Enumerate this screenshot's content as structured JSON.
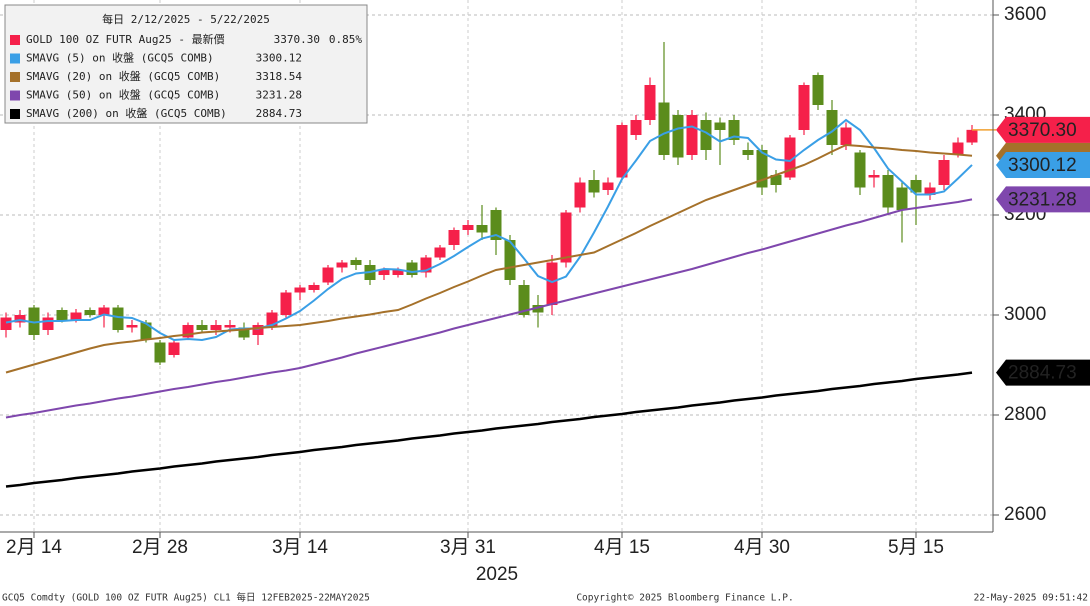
{
  "chart_data": {
    "type": "candlestick",
    "title": "每日 2/12/2025 - 5/22/2025",
    "categories": [
      null,
      null,
      "2月 14",
      null,
      null,
      null,
      null,
      null,
      null,
      null,
      null,
      "2月 28",
      null,
      null,
      null,
      null,
      null,
      null,
      null,
      null,
      null,
      "3月 14",
      null,
      null,
      null,
      null,
      null,
      null,
      null,
      null,
      null,
      null,
      null,
      "3月 31",
      null,
      null,
      null,
      null,
      null,
      null,
      null,
      null,
      null,
      null,
      "4月 15",
      null,
      null,
      null,
      null,
      null,
      null,
      null,
      null,
      null,
      "4月 30",
      null,
      null,
      null,
      null,
      null,
      null,
      null,
      null,
      null,
      null,
      "5月 15",
      null,
      null,
      null,
      null
    ],
    "ohlc": {
      "name": "GOLD 100 OZ FUTR Aug25 - 最新價",
      "up_color": "#f5204a",
      "down_color": "#5b8c1c",
      "open": [
        2970,
        2985,
        3015,
        2970,
        3010,
        2990,
        3010,
        3000,
        3015,
        2975,
        2985,
        2945,
        2920,
        2955,
        2980,
        2970,
        2975,
        2975,
        2960,
        2975,
        3000,
        3045,
        3050,
        3065,
        3095,
        3110,
        3100,
        3080,
        3080,
        3105,
        3085,
        3115,
        3140,
        3170,
        3180,
        3210,
        3150,
        3060,
        3020,
        3020,
        3105,
        3215,
        3270,
        3250,
        3275,
        3360,
        3390,
        3425,
        3400,
        3320,
        3390,
        3385,
        3390,
        3330,
        3330,
        3280,
        3275,
        3370,
        3480,
        3410,
        3340,
        3325,
        3275,
        3280,
        3255,
        3270,
        3240,
        3260,
        3320,
        3345
      ],
      "high": [
        3005,
        3010,
        3020,
        3005,
        3015,
        3012,
        3015,
        3020,
        3020,
        2990,
        2990,
        2950,
        2950,
        2985,
        2990,
        2990,
        2990,
        2985,
        2985,
        3010,
        3050,
        3060,
        3065,
        3100,
        3110,
        3115,
        3110,
        3095,
        3095,
        3110,
        3120,
        3140,
        3175,
        3190,
        3220,
        3215,
        3160,
        3070,
        3040,
        3120,
        3210,
        3275,
        3290,
        3275,
        3385,
        3400,
        3475,
        3546,
        3410,
        3410,
        3405,
        3395,
        3400,
        3345,
        3340,
        3290,
        3360,
        3465,
        3485,
        3430,
        3385,
        3330,
        3290,
        3290,
        3265,
        3280,
        3265,
        3320,
        3355,
        3380
      ],
      "low": [
        2955,
        2975,
        2950,
        2960,
        2985,
        2985,
        2995,
        2975,
        2965,
        2965,
        2945,
        2900,
        2915,
        2950,
        2965,
        2960,
        2965,
        2950,
        2940,
        2970,
        2995,
        3030,
        3045,
        3060,
        3085,
        3090,
        3060,
        3070,
        3075,
        3075,
        3075,
        3110,
        3130,
        3160,
        3150,
        3120,
        3060,
        2995,
        2975,
        3000,
        3095,
        3205,
        3235,
        3240,
        3270,
        3350,
        3380,
        3310,
        3300,
        3310,
        3310,
        3300,
        3340,
        3310,
        3240,
        3245,
        3270,
        3360,
        3410,
        3320,
        3330,
        3240,
        3255,
        3200,
        3145,
        3180,
        3230,
        3250,
        3315,
        3340
      ],
      "close": [
        2995,
        3000,
        2960,
        2995,
        2990,
        3005,
        3000,
        3015,
        2970,
        2980,
        2950,
        2905,
        2945,
        2980,
        2970,
        2980,
        2980,
        2955,
        2980,
        3005,
        3045,
        3055,
        3060,
        3095,
        3105,
        3100,
        3070,
        3090,
        3090,
        3080,
        3115,
        3135,
        3170,
        3180,
        3165,
        3150,
        3070,
        3000,
        3005,
        3105,
        3205,
        3265,
        3245,
        3265,
        3380,
        3390,
        3460,
        3320,
        3315,
        3400,
        3330,
        3370,
        3350,
        3320,
        3255,
        3260,
        3355,
        3460,
        3420,
        3340,
        3375,
        3255,
        3280,
        3215,
        3210,
        3245,
        3255,
        3310,
        3345,
        3370.3
      ],
      "last_label": "3370.30",
      "change_label": "0.85%"
    },
    "series": [
      {
        "name": "SMAVG (5)  on 收盤 (GCQ5 COMB)",
        "color": "#3a9fe6",
        "last_label": "3300.12",
        "values": [
          2985,
          2990,
          2985,
          2988,
          2988,
          2990,
          2990,
          3001,
          2996,
          2994,
          2983,
          2964,
          2950,
          2952,
          2950,
          2956,
          2971,
          2973,
          2973,
          2980,
          2993,
          3008,
          3029,
          3052,
          3072,
          3083,
          3086,
          3092,
          3091,
          3086,
          3089,
          3102,
          3118,
          3136,
          3153,
          3160,
          3147,
          3113,
          3078,
          3066,
          3077,
          3116,
          3165,
          3217,
          3272,
          3309,
          3348,
          3363,
          3373,
          3377,
          3365,
          3347,
          3357,
          3354,
          3325,
          3311,
          3308,
          3330,
          3350,
          3367,
          3390,
          3370,
          3334,
          3293,
          3267,
          3241,
          3241,
          3247,
          3273,
          3300.12
        ]
      },
      {
        "name": "SMAVG (20)  on 收盤 (GCQ5 COMB)",
        "color": "#a5712a",
        "last_label": "3318.54",
        "values": [
          2885,
          2893,
          2901,
          2909,
          2917,
          2925,
          2933,
          2940,
          2944,
          2947,
          2951,
          2954,
          2958,
          2961,
          2965,
          2967,
          2969,
          2971,
          2974,
          2976,
          2978,
          2980,
          2984,
          2988,
          2993,
          2997,
          3001,
          3006,
          3010,
          3021,
          3033,
          3044,
          3056,
          3067,
          3079,
          3090,
          3095,
          3100,
          3105,
          3110,
          3115,
          3120,
          3125,
          3138,
          3151,
          3164,
          3178,
          3191,
          3204,
          3217,
          3230,
          3240,
          3250,
          3260,
          3270,
          3280,
          3290,
          3300,
          3313,
          3327,
          3340,
          3338,
          3335,
          3333,
          3330,
          3328,
          3325,
          3323,
          3321,
          3318.54
        ]
      },
      {
        "name": "SMAVG (50)  on 收盤 (GCQ5 COMB)",
        "color": "#7f47ad",
        "last_label": "3231.28",
        "values": [
          2795,
          2800,
          2804,
          2809,
          2814,
          2819,
          2823,
          2828,
          2833,
          2837,
          2842,
          2847,
          2852,
          2856,
          2861,
          2866,
          2870,
          2875,
          2880,
          2885,
          2889,
          2894,
          2901,
          2908,
          2915,
          2923,
          2930,
          2937,
          2944,
          2951,
          2958,
          2965,
          2973,
          2980,
          2987,
          2994,
          3001,
          3008,
          3015,
          3022,
          3029,
          3036,
          3043,
          3050,
          3057,
          3064,
          3071,
          3078,
          3085,
          3092,
          3100,
          3108,
          3116,
          3124,
          3131,
          3139,
          3147,
          3155,
          3163,
          3171,
          3179,
          3186,
          3194,
          3202,
          3210,
          3214,
          3218,
          3222,
          3226,
          3231.28
        ]
      },
      {
        "name": "SMAVG (200)  on 收盤 (GCQ5 COMB)",
        "color": "#000000",
        "last_label": "2884.73",
        "values": [
          2657,
          2660,
          2664,
          2667,
          2670,
          2674,
          2677,
          2680,
          2683,
          2687,
          2690,
          2693,
          2697,
          2700,
          2703,
          2707,
          2710,
          2713,
          2716,
          2720,
          2723,
          2726,
          2730,
          2733,
          2736,
          2740,
          2743,
          2746,
          2749,
          2753,
          2756,
          2759,
          2763,
          2766,
          2769,
          2773,
          2776,
          2779,
          2782,
          2786,
          2789,
          2792,
          2796,
          2799,
          2802,
          2806,
          2809,
          2812,
          2815,
          2819,
          2822,
          2825,
          2829,
          2832,
          2835,
          2839,
          2842,
          2845,
          2848,
          2852,
          2855,
          2858,
          2862,
          2865,
          2868,
          2872,
          2875,
          2878,
          2881,
          2884.73
        ]
      }
    ],
    "ylim": [
      2570,
      3630
    ],
    "yticks": [
      2600,
      2800,
      3000,
      3200,
      3400,
      3600
    ],
    "grid": true,
    "x_axis_label": "2025",
    "footer": {
      "left": "GCQ5 Comdty (GOLD 100 OZ FUTR  Aug25) CL1  每日 12FEB2025-22MAY2025",
      "center": "Copyright© 2025 Bloomberg Finance L.P.",
      "right": "22-May-2025 09:51:42"
    }
  }
}
